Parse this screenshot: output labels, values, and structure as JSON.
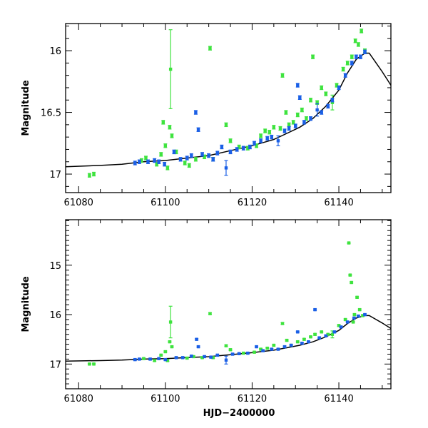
{
  "figure": {
    "xlabel": "HJD−2400000"
  },
  "colors": {
    "green": "#3ee33e",
    "blue": "#1a5fe6",
    "model": "#000000",
    "frame": "#000000"
  },
  "chart_data": [
    {
      "type": "scatter",
      "panel": "top",
      "ylabel": "Magnitude",
      "xlabel": "",
      "xlim": [
        61077,
        61152
      ],
      "ylim": [
        17.15,
        15.78
      ],
      "y_inverted": true,
      "xticks": [
        61080,
        61100,
        61120,
        61140
      ],
      "yticks": [
        16,
        16.5,
        17
      ],
      "ytick_labels": [
        "16",
        "16.5",
        "17"
      ],
      "xtick_labels": [
        "61080",
        "61100",
        "61120",
        "61140"
      ],
      "series": [
        {
          "color": "green",
          "points": [
            {
              "x": 61082.5,
              "y": 17.01
            },
            {
              "x": 61083.5,
              "y": 17.0
            },
            {
              "x": 61094.5,
              "y": 16.89
            },
            {
              "x": 61095.5,
              "y": 16.87
            },
            {
              "x": 61098.0,
              "y": 16.92
            },
            {
              "x": 61099.0,
              "y": 16.84
            },
            {
              "x": 61099.5,
              "y": 16.58
            },
            {
              "x": 61100.0,
              "y": 16.77
            },
            {
              "x": 61100.5,
              "y": 16.95
            },
            {
              "x": 61101.0,
              "y": 16.62
            },
            {
              "x": 61101.2,
              "y": 16.15,
              "err": 0.32
            },
            {
              "x": 61101.5,
              "y": 16.69
            },
            {
              "x": 61102.5,
              "y": 16.82
            },
            {
              "x": 61104.5,
              "y": 16.91
            },
            {
              "x": 61105.5,
              "y": 16.93
            },
            {
              "x": 61107.0,
              "y": 16.88
            },
            {
              "x": 61109.0,
              "y": 16.86
            },
            {
              "x": 61110.3,
              "y": 15.98
            },
            {
              "x": 61111.0,
              "y": 16.88
            },
            {
              "x": 61114.0,
              "y": 16.6
            },
            {
              "x": 61115.0,
              "y": 16.73
            },
            {
              "x": 61117.0,
              "y": 16.78
            },
            {
              "x": 61119.0,
              "y": 16.79
            },
            {
              "x": 61121.0,
              "y": 16.77
            },
            {
              "x": 61122.0,
              "y": 16.69
            },
            {
              "x": 61123.0,
              "y": 16.65
            },
            {
              "x": 61124.0,
              "y": 16.66
            },
            {
              "x": 61125.0,
              "y": 16.62
            },
            {
              "x": 61126.5,
              "y": 16.63
            },
            {
              "x": 61127.0,
              "y": 16.2
            },
            {
              "x": 61127.8,
              "y": 16.5
            },
            {
              "x": 61128.5,
              "y": 16.6
            },
            {
              "x": 61129.5,
              "y": 16.58
            },
            {
              "x": 61130.5,
              "y": 16.52
            },
            {
              "x": 61131.5,
              "y": 16.48
            },
            {
              "x": 61132.5,
              "y": 16.55
            },
            {
              "x": 61133.5,
              "y": 16.4
            },
            {
              "x": 61134.0,
              "y": 16.05
            },
            {
              "x": 61135.0,
              "y": 16.42
            },
            {
              "x": 61136.0,
              "y": 16.3
            },
            {
              "x": 61137.0,
              "y": 16.35
            },
            {
              "x": 61138.5,
              "y": 16.42,
              "err": 0.06
            },
            {
              "x": 61139.5,
              "y": 16.28
            },
            {
              "x": 61141.0,
              "y": 16.15
            },
            {
              "x": 61142.0,
              "y": 16.1
            },
            {
              "x": 61143.0,
              "y": 16.05
            },
            {
              "x": 61143.8,
              "y": 15.92
            },
            {
              "x": 61144.5,
              "y": 15.95
            },
            {
              "x": 61145.2,
              "y": 15.84
            },
            {
              "x": 61146.0,
              "y": 16.0
            }
          ]
        },
        {
          "color": "blue",
          "points": [
            {
              "x": 61093.0,
              "y": 16.91
            },
            {
              "x": 61094.0,
              "y": 16.9
            },
            {
              "x": 61096.0,
              "y": 16.9
            },
            {
              "x": 61097.5,
              "y": 16.89
            },
            {
              "x": 61098.5,
              "y": 16.9
            },
            {
              "x": 61099.8,
              "y": 16.92
            },
            {
              "x": 61102.0,
              "y": 16.82
            },
            {
              "x": 61103.5,
              "y": 16.88
            },
            {
              "x": 61105.0,
              "y": 16.87
            },
            {
              "x": 61106.0,
              "y": 16.85
            },
            {
              "x": 61107.0,
              "y": 16.5
            },
            {
              "x": 61107.6,
              "y": 16.64
            },
            {
              "x": 61108.5,
              "y": 16.84
            },
            {
              "x": 61110.0,
              "y": 16.85
            },
            {
              "x": 61111.0,
              "y": 16.88
            },
            {
              "x": 61112.0,
              "y": 16.83
            },
            {
              "x": 61113.0,
              "y": 16.78
            },
            {
              "x": 61114.0,
              "y": 16.95,
              "err": 0.06
            },
            {
              "x": 61115.0,
              "y": 16.82
            },
            {
              "x": 61116.5,
              "y": 16.8
            },
            {
              "x": 61118.0,
              "y": 16.79
            },
            {
              "x": 61119.5,
              "y": 16.78
            },
            {
              "x": 61120.5,
              "y": 16.75
            },
            {
              "x": 61122.0,
              "y": 16.73
            },
            {
              "x": 61123.5,
              "y": 16.71
            },
            {
              "x": 61124.5,
              "y": 16.7
            },
            {
              "x": 61126.0,
              "y": 16.73,
              "err": 0.04
            },
            {
              "x": 61127.5,
              "y": 16.65
            },
            {
              "x": 61128.5,
              "y": 16.63
            },
            {
              "x": 61130.0,
              "y": 16.61
            },
            {
              "x": 61130.5,
              "y": 16.28
            },
            {
              "x": 61131.0,
              "y": 16.38
            },
            {
              "x": 61132.0,
              "y": 16.58
            },
            {
              "x": 61133.5,
              "y": 16.55
            },
            {
              "x": 61135.0,
              "y": 16.48,
              "err": 0.05
            },
            {
              "x": 61136.0,
              "y": 16.5
            },
            {
              "x": 61137.5,
              "y": 16.45
            },
            {
              "x": 61138.5,
              "y": 16.4
            },
            {
              "x": 61140.0,
              "y": 16.3
            },
            {
              "x": 61141.5,
              "y": 16.2
            },
            {
              "x": 61143.0,
              "y": 16.1
            },
            {
              "x": 61144.0,
              "y": 16.05
            },
            {
              "x": 61145.0,
              "y": 16.05
            },
            {
              "x": 61146.0,
              "y": 16.01
            }
          ]
        }
      ],
      "model_curve": {
        "color": "model",
        "x": [
          61077,
          61085,
          61090,
          61095,
          61100,
          61105,
          61110,
          61115,
          61120,
          61125,
          61128,
          61131,
          61134,
          61137,
          61140,
          61142,
          61144,
          61146,
          61147,
          61148,
          61150,
          61152
        ],
        "y": [
          16.94,
          16.93,
          16.92,
          16.9,
          16.89,
          16.87,
          16.85,
          16.81,
          16.77,
          16.72,
          16.67,
          16.62,
          16.55,
          16.45,
          16.32,
          16.18,
          16.07,
          16.02,
          16.02,
          16.07,
          16.17,
          16.28
        ]
      }
    },
    {
      "type": "scatter",
      "panel": "bottom",
      "ylabel": "Magnitude",
      "xlabel": "HJD−2400000",
      "xlim": [
        61077,
        61152
      ],
      "ylim": [
        17.5,
        14.08
      ],
      "y_inverted": true,
      "xticks": [
        61080,
        61100,
        61120,
        61140
      ],
      "yticks": [
        15,
        16,
        17
      ],
      "ytick_labels": [
        "15",
        "16",
        "17"
      ],
      "xtick_labels": [
        "61080",
        "61100",
        "61120",
        "61140"
      ],
      "series": [
        {
          "color": "green",
          "points": [
            {
              "x": 61082.5,
              "y": 17.0
            },
            {
              "x": 61083.5,
              "y": 17.0
            },
            {
              "x": 61095.0,
              "y": 16.89
            },
            {
              "x": 61097.5,
              "y": 16.93
            },
            {
              "x": 61099.0,
              "y": 16.82
            },
            {
              "x": 61100.0,
              "y": 16.75
            },
            {
              "x": 61100.5,
              "y": 16.93
            },
            {
              "x": 61101.0,
              "y": 16.55
            },
            {
              "x": 61101.2,
              "y": 16.15,
              "err": 0.32
            },
            {
              "x": 61101.5,
              "y": 16.65
            },
            {
              "x": 61105.0,
              "y": 16.88
            },
            {
              "x": 61106.5,
              "y": 16.85
            },
            {
              "x": 61108.5,
              "y": 16.87
            },
            {
              "x": 61110.3,
              "y": 15.98
            },
            {
              "x": 61111.0,
              "y": 16.87
            },
            {
              "x": 61114.0,
              "y": 16.63
            },
            {
              "x": 61115.0,
              "y": 16.71
            },
            {
              "x": 61118.0,
              "y": 16.78
            },
            {
              "x": 61120.5,
              "y": 16.76
            },
            {
              "x": 61122.0,
              "y": 16.7
            },
            {
              "x": 61123.5,
              "y": 16.68
            },
            {
              "x": 61125.0,
              "y": 16.62
            },
            {
              "x": 61127.0,
              "y": 16.18
            },
            {
              "x": 61128.0,
              "y": 16.52
            },
            {
              "x": 61129.0,
              "y": 16.62
            },
            {
              "x": 61130.5,
              "y": 16.55
            },
            {
              "x": 61132.0,
              "y": 16.5
            },
            {
              "x": 61133.5,
              "y": 16.45
            },
            {
              "x": 61134.5,
              "y": 16.4
            },
            {
              "x": 61136.0,
              "y": 16.35
            },
            {
              "x": 61137.5,
              "y": 16.4
            },
            {
              "x": 61138.5,
              "y": 16.4,
              "err": 0.07
            },
            {
              "x": 61140.0,
              "y": 16.22
            },
            {
              "x": 61141.5,
              "y": 16.1
            },
            {
              "x": 61142.3,
              "y": 14.55
            },
            {
              "x": 61142.6,
              "y": 15.2
            },
            {
              "x": 61142.9,
              "y": 15.35
            },
            {
              "x": 61143.3,
              "y": 16.15
            },
            {
              "x": 61143.6,
              "y": 16.0
            },
            {
              "x": 61144.2,
              "y": 15.65
            },
            {
              "x": 61144.8,
              "y": 15.9
            },
            {
              "x": 61145.5,
              "y": 16.02
            }
          ]
        },
        {
          "color": "blue",
          "points": [
            {
              "x": 61093.0,
              "y": 16.91
            },
            {
              "x": 61094.0,
              "y": 16.9
            },
            {
              "x": 61096.5,
              "y": 16.9
            },
            {
              "x": 61098.5,
              "y": 16.89
            },
            {
              "x": 61100.0,
              "y": 16.91
            },
            {
              "x": 61102.5,
              "y": 16.87
            },
            {
              "x": 61104.0,
              "y": 16.87
            },
            {
              "x": 61106.0,
              "y": 16.84
            },
            {
              "x": 61107.2,
              "y": 16.5
            },
            {
              "x": 61107.6,
              "y": 16.65
            },
            {
              "x": 61109.0,
              "y": 16.85
            },
            {
              "x": 61110.5,
              "y": 16.86
            },
            {
              "x": 61112.0,
              "y": 16.82
            },
            {
              "x": 61114.0,
              "y": 16.92,
              "err": 0.08
            },
            {
              "x": 61115.5,
              "y": 16.8
            },
            {
              "x": 61117.0,
              "y": 16.79
            },
            {
              "x": 61119.0,
              "y": 16.78
            },
            {
              "x": 61121.0,
              "y": 16.65
            },
            {
              "x": 61122.5,
              "y": 16.73
            },
            {
              "x": 61124.5,
              "y": 16.7
            },
            {
              "x": 61126.0,
              "y": 16.7
            },
            {
              "x": 61127.5,
              "y": 16.65
            },
            {
              "x": 61129.0,
              "y": 16.62
            },
            {
              "x": 61130.5,
              "y": 16.35
            },
            {
              "x": 61131.5,
              "y": 16.58
            },
            {
              "x": 61133.0,
              "y": 16.55
            },
            {
              "x": 61134.5,
              "y": 15.9
            },
            {
              "x": 61135.5,
              "y": 16.47
            },
            {
              "x": 61137.0,
              "y": 16.43
            },
            {
              "x": 61139.0,
              "y": 16.35
            },
            {
              "x": 61140.5,
              "y": 16.25
            },
            {
              "x": 61142.0,
              "y": 16.15
            },
            {
              "x": 61143.5,
              "y": 16.07
            },
            {
              "x": 61144.5,
              "y": 16.03
            },
            {
              "x": 61146.0,
              "y": 16.0
            }
          ]
        }
      ],
      "model_curve": {
        "color": "model",
        "x": [
          61077,
          61085,
          61090,
          61095,
          61100,
          61105,
          61110,
          61115,
          61120,
          61125,
          61128,
          61131,
          61134,
          61137,
          61140,
          61142,
          61144,
          61146,
          61147,
          61148,
          61150,
          61152
        ],
        "y": [
          16.94,
          16.93,
          16.92,
          16.9,
          16.89,
          16.87,
          16.85,
          16.81,
          16.77,
          16.72,
          16.67,
          16.62,
          16.55,
          16.45,
          16.32,
          16.18,
          16.07,
          16.02,
          16.02,
          16.07,
          16.17,
          16.28
        ]
      }
    }
  ]
}
